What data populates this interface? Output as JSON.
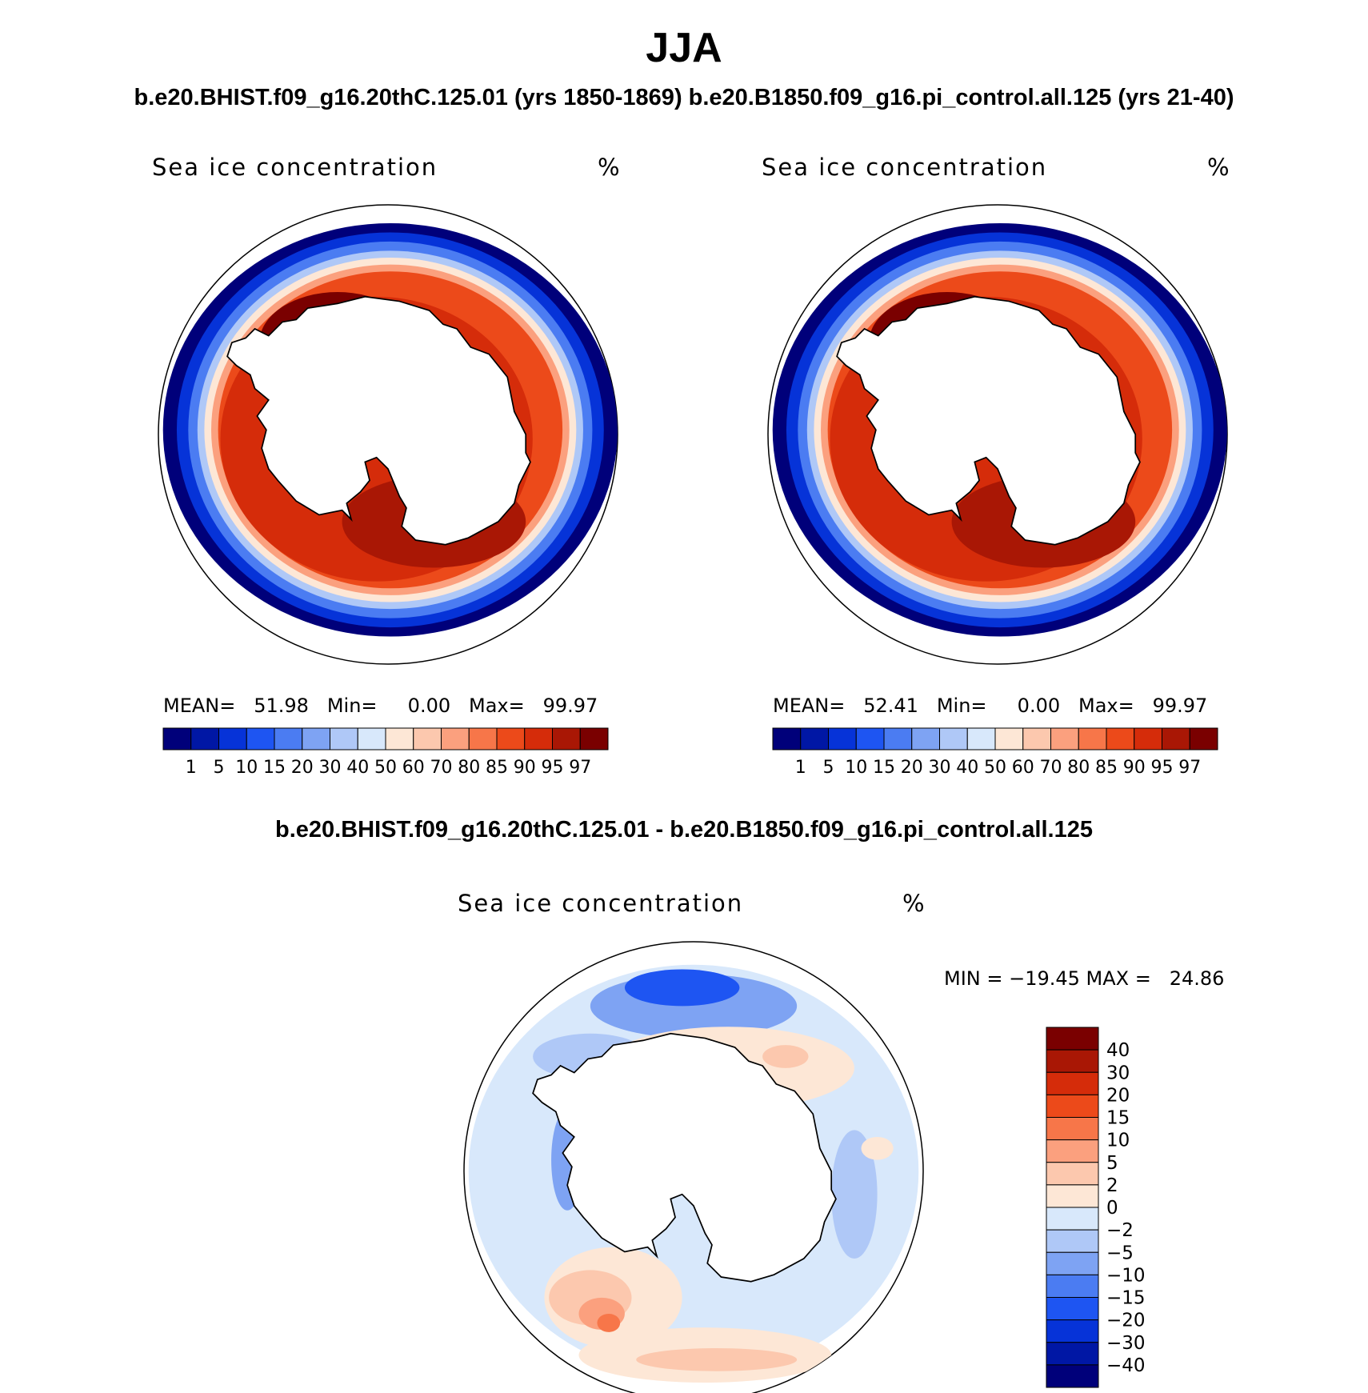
{
  "figure": {
    "title": "JJA",
    "subtitle": "b.e20.BHIST.f09_g16.20thC.125.01 (yrs 1850-1869)  b.e20.B1850.f09_g16.pi_control.all.125 (yrs 21-40)",
    "diff_title": "b.e20.BHIST.f09_g16.20thC.125.01 - b.e20.B1850.f09_g16.pi_control.all.125"
  },
  "panels": {
    "left": {
      "variable": "Sea ice concentration",
      "units": "%",
      "stats": "MEAN=   51.98   Min=     0.00   Max=   99.97"
    },
    "right": {
      "variable": "Sea ice concentration",
      "units": "%",
      "stats": "MEAN=   52.41   Min=     0.00   Max=   99.97"
    },
    "diff": {
      "variable": "Sea ice concentration",
      "units": "%",
      "stats": "MIN = −19.45 MAX =   24.86"
    }
  },
  "colorbar_abs": {
    "labels": [
      "1",
      "5",
      "10",
      "15",
      "20",
      "30",
      "40",
      "50",
      "60",
      "70",
      "80",
      "85",
      "90",
      "95",
      "97"
    ],
    "colors": [
      "#00007a",
      "#0017a5",
      "#0633d8",
      "#1e55f2",
      "#4b7cf2",
      "#7ea3f3",
      "#afc8f7",
      "#d8e8fb",
      "#fde7d6",
      "#fcc8ae",
      "#fba07e",
      "#f77649",
      "#ec4a1a",
      "#d52c0a",
      "#a91705",
      "#7a0000"
    ]
  },
  "colorbar_diff": {
    "labels": [
      "40",
      "30",
      "20",
      "15",
      "10",
      "5",
      "2",
      "0",
      "−2",
      "−5",
      "−10",
      "−15",
      "−20",
      "−30",
      "−40"
    ],
    "colors": [
      "#7a0000",
      "#a91705",
      "#d52c0a",
      "#ec4a1a",
      "#f77649",
      "#fba07e",
      "#fcc8ae",
      "#fde7d6",
      "#d8e8fb",
      "#afc8f7",
      "#7ea3f3",
      "#4b7cf2",
      "#1e55f2",
      "#0633d8",
      "#0017a5",
      "#00007a"
    ]
  },
  "chart_data": [
    {
      "type": "heatmap",
      "title": "Sea ice concentration",
      "units": "%",
      "projection": "south-polar-stereographic",
      "season": "JJA",
      "case": "b.e20.BHIST.f09_g16.20thC.125.01 (yrs 1850-1869)",
      "stats": {
        "mean": 51.98,
        "min": 0.0,
        "max": 99.97
      },
      "levels": [
        1,
        5,
        10,
        15,
        20,
        30,
        40,
        50,
        60,
        70,
        80,
        85,
        90,
        95,
        97
      ]
    },
    {
      "type": "heatmap",
      "title": "Sea ice concentration",
      "units": "%",
      "projection": "south-polar-stereographic",
      "season": "JJA",
      "case": "b.e20.B1850.f09_g16.pi_control.all.125 (yrs 21-40)",
      "stats": {
        "mean": 52.41,
        "min": 0.0,
        "max": 99.97
      },
      "levels": [
        1,
        5,
        10,
        15,
        20,
        30,
        40,
        50,
        60,
        70,
        80,
        85,
        90,
        95,
        97
      ]
    },
    {
      "type": "heatmap",
      "title": "Sea ice concentration",
      "units": "%",
      "projection": "south-polar-stereographic",
      "season": "JJA",
      "case": "b.e20.BHIST.f09_g16.20thC.125.01 - b.e20.B1850.f09_g16.pi_control.all.125",
      "stats": {
        "min": -19.45,
        "max": 24.86
      },
      "levels": [
        -40,
        -30,
        -20,
        -15,
        -10,
        -5,
        -2,
        0,
        2,
        5,
        10,
        15,
        20,
        30,
        40
      ]
    }
  ]
}
